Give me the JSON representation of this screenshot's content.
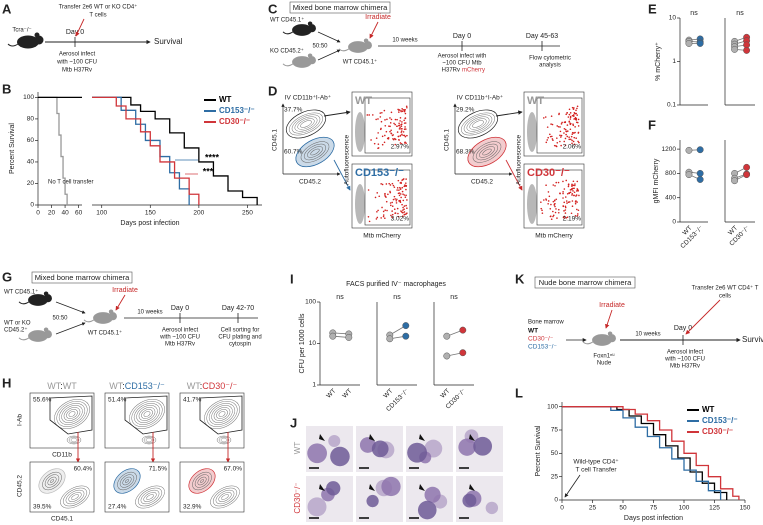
{
  "panel_labels": [
    "A",
    "B",
    "C",
    "D",
    "E",
    "F",
    "G",
    "H",
    "I",
    "J",
    "K",
    "L"
  ],
  "diagram_A": {
    "mouse": "Tcra⁻/⁻",
    "transfer": [
      "Transfer 2e6 WT or KO CD4⁺",
      "T cells"
    ],
    "day0": "Day 0",
    "infect": [
      "Aerosol infect",
      "with ~100 CFU",
      "Mtb H37Rv"
    ],
    "end": "Survival"
  },
  "diagram_C": {
    "title": "Mixed bone marrow chimera",
    "donor1": "WT CD45.1⁺",
    "donor2": "KO CD45.2⁺",
    "ratio": "50:50",
    "irradiate": "Irradiate",
    "interval": "10 weeks",
    "recipient": "WT CD45.1⁺",
    "day0": "Day 0",
    "day_end": "Day 45-63",
    "infect": [
      "Aerosol infect with",
      "~100 CFU Mtb"
    ],
    "strain": "H37Rv",
    "reporter": "mCherry",
    "analysis": [
      "Flow cytometric",
      "analysis"
    ]
  },
  "diagram_G": {
    "title": "Mixed bone marrow chimera",
    "donor1": "WT CD45.1⁺",
    "donor2": [
      "WT or KO",
      "CD45.2⁺"
    ],
    "ratio": "50:50",
    "irradiate": "Irradiate",
    "interval": "10 weeks",
    "recipient": "WT CD45.1⁺",
    "day0": "Day 0",
    "day_end": "Day 42-70",
    "infect": [
      "Aerosol infect",
      "with ~100 CFU",
      "Mtb H37Rv"
    ],
    "analysis": [
      "Cell sorting for",
      "CFU plating and",
      "cytospin"
    ]
  },
  "diagram_K": {
    "title": "Nude bone marrow chimera",
    "source": "Bone marrow",
    "donors": [
      "WT",
      "CD30⁻/⁻",
      "CD153⁻/⁻"
    ],
    "donor_colors": [
      "#111111",
      "#d0353a",
      "#2e6da4"
    ],
    "irradiate": "Irradiate",
    "interval": "10 weeks",
    "recipient": [
      "Foxn1ⁿᵘ",
      "Nude"
    ],
    "day0": "Day 0",
    "transfer": [
      "Transfer 2e6 WT CD4⁺ T",
      "cells"
    ],
    "infect": [
      "Aerosol infect",
      "with ~100 CFU",
      "Mtb H37Rv"
    ],
    "end": "Survival"
  },
  "flow_D": {
    "gate_label": "IV CD11b⁺I-Ab⁺",
    "x_axis": "CD45.2",
    "y_axis": "CD45.1",
    "af_axis": "Autofluorescence",
    "mch_axis": "Mtb mCherry",
    "plots": [
      {
        "upper": "37.7%",
        "lower": "60.7%",
        "top_title": "WT",
        "top_pct": "2.97%",
        "bottom_title": "CD153⁻/⁻",
        "bottom_pct": "3.02%",
        "ko_color": "#2e6da4"
      },
      {
        "upper": "29.2%",
        "lower": "68.3%",
        "top_title": "WT",
        "top_pct": "2.06%",
        "bottom_title": "CD30⁻/⁻",
        "bottom_pct": "2.19%",
        "ko_color": "#d0353a"
      }
    ]
  },
  "flow_H": {
    "y_top": "I-Ab",
    "x_top": "CD11b",
    "y_bottom": "CD45.2",
    "x_bottom": "CD45.1",
    "columns": [
      {
        "title": [
          "WT",
          ":",
          "WT"
        ],
        "title_colors": [
          "#999999",
          "#222222",
          "#999999"
        ],
        "top_pct": "55.6%",
        "upper_pct": "60.4%",
        "lower_pct": "39.5%",
        "color": "#bbbbbb"
      },
      {
        "title": [
          "WT",
          ":",
          "CD153⁻/⁻"
        ],
        "title_colors": [
          "#999999",
          "#222222",
          "#2e6da4"
        ],
        "top_pct": "51.4%",
        "upper_pct": "71.5%",
        "lower_pct": "27.4%",
        "color": "#2e6da4"
      },
      {
        "title": [
          "WT",
          ":",
          "CD30⁻/⁻"
        ],
        "title_colors": [
          "#999999",
          "#222222",
          "#d0353a"
        ],
        "top_pct": "41.7%",
        "upper_pct": "67.0%",
        "lower_pct": "32.9%",
        "color": "#d0353a"
      }
    ]
  },
  "panel_I": {
    "title": "FACS purified IV⁻ macrophages"
  },
  "panel_J": {
    "rows": [
      "WT",
      "CD30⁻/⁻"
    ],
    "row_colors": [
      "#999999",
      "#d0353a"
    ]
  },
  "chart_data": [
    {
      "type": "survival",
      "ylabel": "Percent Survival",
      "xlim": [
        0,
        65
      ],
      "xticks": [
        0,
        20,
        40,
        60
      ],
      "ylim": [
        0,
        105
      ],
      "yticks": [
        0,
        20,
        40,
        60,
        80,
        100
      ],
      "series": [
        {
          "name": "No T cell transfer",
          "color": "#999999",
          "x": [
            0,
            28,
            28,
            31,
            31,
            34,
            34,
            37,
            37,
            40,
            40,
            43,
            43
          ],
          "values": [
            100,
            100,
            85,
            85,
            65,
            65,
            45,
            45,
            25,
            25,
            10,
            10,
            0
          ]
        },
        {
          "color": "#000000",
          "x": [
            0,
            65
          ],
          "values": [
            100,
            100
          ]
        }
      ]
    },
    {
      "type": "survival",
      "xlabel": "Days post infection",
      "xlim": [
        90,
        265
      ],
      "xticks": [
        100,
        150,
        200,
        250
      ],
      "ylim": [
        0,
        105
      ],
      "legend": "upper right",
      "annotations": [
        "****",
        "***"
      ],
      "series": [
        {
          "name": "WT",
          "color": "#000000",
          "x": [
            90,
            130,
            130,
            140,
            140,
            155,
            155,
            170,
            170,
            185,
            185,
            200,
            200,
            215,
            215,
            230,
            230,
            245,
            245,
            260,
            260
          ],
          "values": [
            100,
            100,
            93,
            93,
            87,
            87,
            80,
            80,
            67,
            67,
            53,
            53,
            40,
            40,
            27,
            27,
            13,
            13,
            7,
            7,
            0
          ]
        },
        {
          "name": "CD153⁻/⁻",
          "color": "#2e6da4",
          "x": [
            90,
            120,
            120,
            135,
            135,
            145,
            145,
            160,
            160,
            170,
            170,
            180,
            180,
            190,
            190
          ],
          "values": [
            100,
            100,
            88,
            88,
            75,
            75,
            60,
            60,
            45,
            45,
            30,
            30,
            15,
            15,
            0
          ]
        },
        {
          "name": "CD30⁻/⁻",
          "color": "#d0353a",
          "x": [
            90,
            115,
            115,
            125,
            125,
            140,
            140,
            150,
            150,
            160,
            160,
            175,
            175,
            190,
            190,
            200,
            200
          ],
          "values": [
            100,
            100,
            92,
            92,
            80,
            80,
            68,
            68,
            55,
            55,
            40,
            40,
            25,
            25,
            10,
            10,
            0
          ]
        }
      ]
    },
    {
      "type": "paired",
      "log": true,
      "ylabel": "% mCherry⁺",
      "ylim": [
        0.1,
        10
      ],
      "yticks": [
        0.1,
        1,
        10
      ],
      "annotation": "ns",
      "series": [
        {
          "color": "#b0b0b0",
          "values": [
            3.1,
            2.9,
            2.6
          ]
        },
        {
          "color": "#2e6da4",
          "values": [
            3.3,
            2.8,
            2.6
          ]
        }
      ]
    },
    {
      "type": "paired",
      "log": true,
      "ylim": [
        0.1,
        10
      ],
      "annotation": "ns",
      "series": [
        {
          "color": "#b0b0b0",
          "values": [
            2.9,
            2.5,
            2.2,
            1.9
          ]
        },
        {
          "color": "#d0353a",
          "values": [
            3.6,
            3.0,
            2.4,
            1.8
          ]
        }
      ]
    },
    {
      "type": "paired",
      "ylabel": "gMFI mCherry",
      "ylim": [
        0,
        1350
      ],
      "yticks": [
        0,
        400,
        800,
        1200
      ],
      "series": [
        {
          "name": "WT",
          "color": "#b0b0b0",
          "values": [
            1180,
            820,
            780
          ]
        },
        {
          "name": "CD153⁻/⁻",
          "color": "#2e6da4",
          "values": [
            1190,
            800,
            700
          ]
        }
      ]
    },
    {
      "type": "paired",
      "ylim": [
        0,
        1350
      ],
      "series": [
        {
          "name": "WT",
          "color": "#b0b0b0",
          "values": [
            800,
            720,
            680
          ]
        },
        {
          "name": "CD30⁻/⁻",
          "color": "#d0353a",
          "values": [
            900,
            790,
            780
          ]
        }
      ]
    },
    {
      "type": "paired",
      "log": true,
      "ylabel": "CFU per 1000 cells",
      "ylim": [
        1,
        100
      ],
      "yticks": [
        1,
        10,
        100
      ],
      "annotation": "ns",
      "series": [
        {
          "name": "WT",
          "color": "#b0b0b0",
          "values": [
            18,
            15
          ]
        },
        {
          "name": "WT",
          "color": "#b0b0b0",
          "values": [
            17,
            14
          ]
        }
      ]
    },
    {
      "type": "paired",
      "log": true,
      "ylim": [
        1,
        100
      ],
      "annotation": "ns",
      "series": [
        {
          "name": "WT",
          "color": "#b0b0b0",
          "values": [
            16,
            13
          ]
        },
        {
          "name": "CD153⁻/⁻",
          "color": "#2e6da4",
          "values": [
            27,
            15
          ]
        }
      ]
    },
    {
      "type": "paired",
      "log": true,
      "ylim": [
        1,
        100
      ],
      "annotation": "ns",
      "series": [
        {
          "name": "WT",
          "color": "#b0b0b0",
          "values": [
            15,
            5
          ]
        },
        {
          "name": "CD30⁻/⁻",
          "color": "#d0353a",
          "values": [
            21,
            6
          ]
        }
      ]
    },
    {
      "type": "survival",
      "ylabel": "Percent Survival",
      "xlabel": "Days post infection",
      "xlim": [
        0,
        150
      ],
      "xticks": [
        0,
        25,
        50,
        75,
        100,
        125,
        150
      ],
      "ylim": [
        0,
        105
      ],
      "yticks": [
        0,
        25,
        50,
        75,
        100
      ],
      "legend": "upper right",
      "annotation": [
        "Wild-type CD4⁺",
        "T cell Transfer"
      ],
      "series": [
        {
          "name": "WT",
          "color": "#000000",
          "x": [
            0,
            45,
            45,
            55,
            55,
            65,
            65,
            75,
            75,
            85,
            85,
            95,
            95,
            105,
            105,
            115,
            115,
            125,
            125,
            135,
            135
          ],
          "values": [
            100,
            100,
            97,
            97,
            90,
            90,
            82,
            82,
            70,
            70,
            58,
            58,
            45,
            45,
            30,
            30,
            18,
            18,
            8,
            8,
            0
          ]
        },
        {
          "name": "CD153⁻/⁻",
          "color": "#2e6da4",
          "x": [
            0,
            40,
            40,
            50,
            50,
            60,
            60,
            70,
            70,
            80,
            80,
            90,
            90,
            100,
            100,
            110,
            110,
            120,
            120,
            130,
            130
          ],
          "values": [
            100,
            100,
            96,
            96,
            88,
            88,
            78,
            78,
            68,
            68,
            56,
            56,
            44,
            44,
            32,
            32,
            20,
            20,
            10,
            10,
            0
          ]
        },
        {
          "name": "CD30⁻/⁻",
          "color": "#d0353a",
          "x": [
            0,
            50,
            50,
            60,
            60,
            70,
            70,
            80,
            80,
            90,
            90,
            100,
            100,
            110,
            110,
            120,
            120,
            130,
            130,
            140,
            140,
            145,
            145
          ],
          "values": [
            100,
            100,
            97,
            97,
            92,
            92,
            85,
            85,
            75,
            75,
            63,
            63,
            50,
            50,
            37,
            37,
            25,
            25,
            12,
            12,
            4,
            4,
            0
          ]
        }
      ]
    }
  ]
}
